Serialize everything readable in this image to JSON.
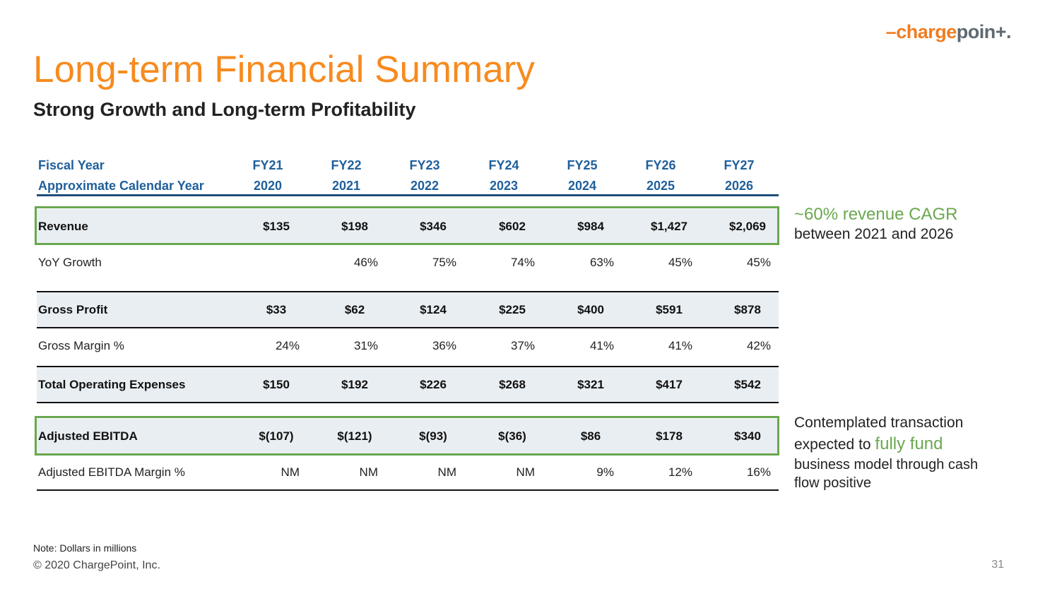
{
  "logo": {
    "dash": "–",
    "charge": "charge",
    "point": "poin",
    "tail": "+."
  },
  "title": "Long-term Financial Summary",
  "subtitle": "Strong Growth and Long-term Profitability",
  "header": {
    "row1_label": "Fiscal Year",
    "row2_label": "Approximate Calendar Year",
    "fiscal_years": [
      "FY21",
      "FY22",
      "FY23",
      "FY24",
      "FY25",
      "FY26",
      "FY27"
    ],
    "calendar_years": [
      "2020",
      "2021",
      "2022",
      "2023",
      "2024",
      "2025",
      "2026"
    ]
  },
  "rows": {
    "revenue": {
      "label": "Revenue",
      "values": [
        "$135",
        "$198",
        "$346",
        "$602",
        "$984",
        "$1,427",
        "$2,069"
      ]
    },
    "yoy": {
      "label": "YoY Growth",
      "values": [
        "",
        "46%",
        "75%",
        "74%",
        "63%",
        "45%",
        "45%"
      ]
    },
    "gross_profit": {
      "label": "Gross Profit",
      "values": [
        "$33",
        "$62",
        "$124",
        "$225",
        "$400",
        "$591",
        "$878"
      ]
    },
    "gross_margin": {
      "label": "Gross Margin %",
      "values": [
        "24%",
        "31%",
        "36%",
        "37%",
        "41%",
        "41%",
        "42%"
      ]
    },
    "opex": {
      "label": "Total Operating Expenses",
      "values": [
        "$150",
        "$192",
        "$226",
        "$268",
        "$321",
        "$417",
        "$542"
      ]
    },
    "ebitda": {
      "label": "Adjusted EBITDA",
      "values": [
        "$(107)",
        "$(121)",
        "$(93)",
        "$(36)",
        "$86",
        "$178",
        "$340"
      ]
    },
    "ebitda_margin": {
      "label": "Adjusted EBITDA Margin %",
      "values": [
        "NM",
        "NM",
        "NM",
        "NM",
        "9%",
        "12%",
        "16%"
      ]
    }
  },
  "callouts": {
    "cagr_big": "~60% revenue CAGR",
    "cagr_small": "between 2021 and 2026",
    "contemp_line1": "Contemplated transaction",
    "contemp_line2_pre": "expected to ",
    "contemp_line2_hl": "fully fund",
    "contemp_line3": "business model through cash flow positive"
  },
  "footer": {
    "note": "Note: Dollars in millions",
    "copyright": "© 2020 ChargePoint, Inc.",
    "page": "31"
  },
  "colors": {
    "accent_orange": "#f68b1f",
    "header_blue": "#1f5f9c",
    "green": "#6aa84f",
    "shade": "#e9eef2"
  }
}
